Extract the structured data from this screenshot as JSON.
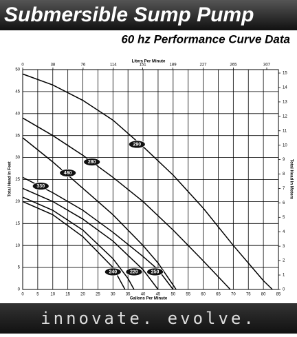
{
  "chart_data": {
    "type": "line",
    "title": "Submersible Sump Pump",
    "subtitle": "60 hz Performance Curve Data",
    "x_label": "Gallons Per Minute",
    "x2_label": "Liters Per Minute",
    "y_label": "Total Head In Feet",
    "y2_label": "Total Head In Meters",
    "footer": "innovate. evolve.",
    "xlim": [
      0,
      85
    ],
    "xticks": [
      0,
      5,
      10,
      15,
      20,
      25,
      30,
      35,
      40,
      45,
      50,
      55,
      60,
      65,
      70,
      75,
      80,
      85
    ],
    "x2lim": [
      0,
      321.7
    ],
    "x2ticks": [
      0,
      38,
      76,
      114,
      151,
      189,
      227,
      265,
      307
    ],
    "ylim": [
      0,
      50
    ],
    "yticks": [
      0,
      5,
      10,
      15,
      20,
      25,
      30,
      35,
      40,
      45,
      50
    ],
    "y2lim": [
      0,
      15.24
    ],
    "y2ticks": [
      0,
      1,
      2,
      3,
      4,
      5,
      6,
      7,
      8,
      9,
      10,
      11,
      12,
      13,
      14,
      15
    ],
    "grid": true,
    "series": [
      {
        "name": "290",
        "color": "#000000",
        "x": [
          0,
          10,
          20,
          30,
          40,
          50,
          60,
          70,
          80,
          83
        ],
        "values": [
          49,
          46.5,
          43,
          38.5,
          32.5,
          26,
          18.5,
          10,
          2,
          0
        ]
      },
      {
        "name": "280",
        "color": "#000000",
        "x": [
          0,
          10,
          20,
          30,
          40,
          50,
          60,
          69
        ],
        "values": [
          39,
          35,
          30.5,
          25.5,
          20,
          13.5,
          6.5,
          0
        ]
      },
      {
        "name": "460",
        "color": "#000000",
        "x": [
          0,
          10,
          20,
          30,
          40,
          45,
          51
        ],
        "values": [
          34.5,
          29,
          23,
          17,
          10,
          6,
          0
        ]
      },
      {
        "name": "330",
        "color": "#000000",
        "x": [
          0,
          10,
          20,
          30,
          40,
          45,
          50
        ],
        "values": [
          25.5,
          22,
          18,
          13,
          7.5,
          4.5,
          0
        ]
      },
      {
        "name": "250",
        "color": "#000000",
        "x": [
          0,
          10,
          20,
          30,
          40,
          45
        ],
        "values": [
          23,
          20,
          16,
          11,
          4.5,
          0
        ]
      },
      {
        "name": "220",
        "color": "#000000",
        "x": [
          0,
          10,
          20,
          30,
          35,
          37
        ],
        "values": [
          21,
          18,
          13.5,
          7,
          2.5,
          0
        ]
      },
      {
        "name": "240",
        "color": "#000000",
        "x": [
          0,
          10,
          20,
          30,
          34
        ],
        "values": [
          20,
          17,
          12,
          5,
          0
        ]
      }
    ]
  }
}
